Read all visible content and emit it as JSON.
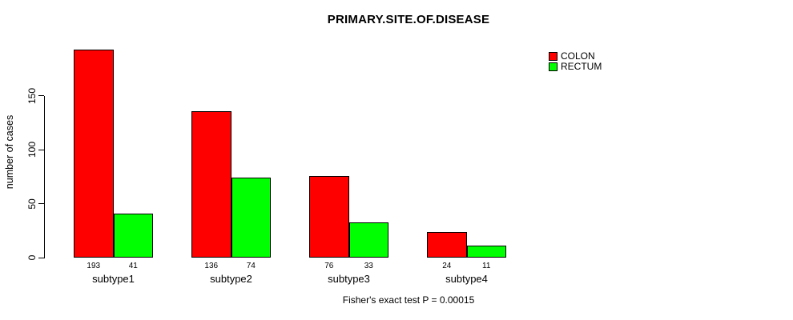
{
  "title": "PRIMARY.SITE.OF.DISEASE",
  "caption": "Fisher's exact test P = 0.00015",
  "legend": {
    "items": [
      {
        "label": "COLON",
        "color": "#ff0000"
      },
      {
        "label": "RECTUM",
        "color": "#00ff00"
      }
    ]
  },
  "chart_data": {
    "type": "bar",
    "title": "PRIMARY.SITE.OF.DISEASE",
    "xlabel": "",
    "ylabel": "number of cases",
    "categories": [
      "subtype1",
      "subtype2",
      "subtype3",
      "subtype4"
    ],
    "series": [
      {
        "name": "COLON",
        "color": "#ff0000",
        "values": [
          193,
          136,
          76,
          24
        ]
      },
      {
        "name": "RECTUM",
        "color": "#00ff00",
        "values": [
          41,
          74,
          33,
          11
        ]
      }
    ],
    "yticks": [
      0,
      50,
      100,
      150
    ],
    "ylim": [
      0,
      200
    ],
    "grid": false,
    "legend_position": "top-right",
    "bar_value_labels_shown": true,
    "annotation": "Fisher's exact test P = 0.00015"
  }
}
